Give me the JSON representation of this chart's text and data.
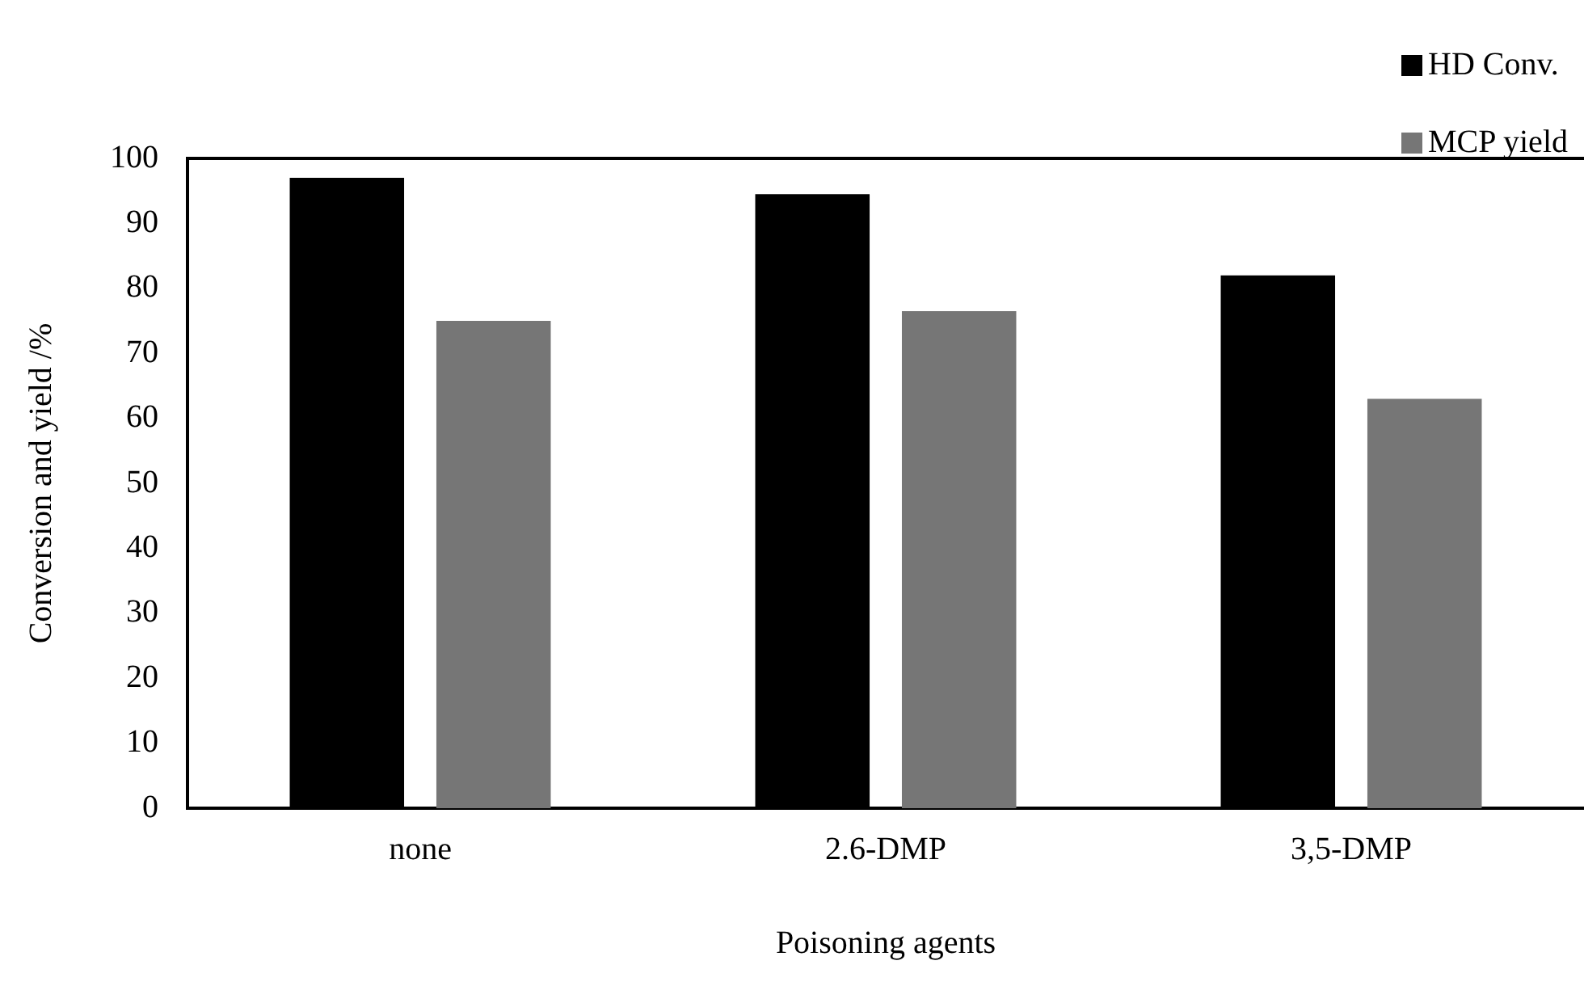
{
  "chart_data": {
    "type": "bar",
    "xlabel": "Poisoning agents",
    "ylabel": "Conversion and yield /%",
    "categories": [
      "none",
      "2.6-DMP",
      "3,5-DMP"
    ],
    "series": [
      {
        "name": "HD Conv.",
        "color": "#000000",
        "values": [
          97,
          94.5,
          82
        ]
      },
      {
        "name": "MCP yield",
        "color": "#767676",
        "values": [
          75,
          76.5,
          63
        ]
      }
    ],
    "ylim": [
      0,
      100
    ],
    "yticks": [
      0,
      10,
      20,
      30,
      40,
      50,
      60,
      70,
      80,
      90,
      100
    ],
    "grid": false,
    "legend": "top right"
  }
}
